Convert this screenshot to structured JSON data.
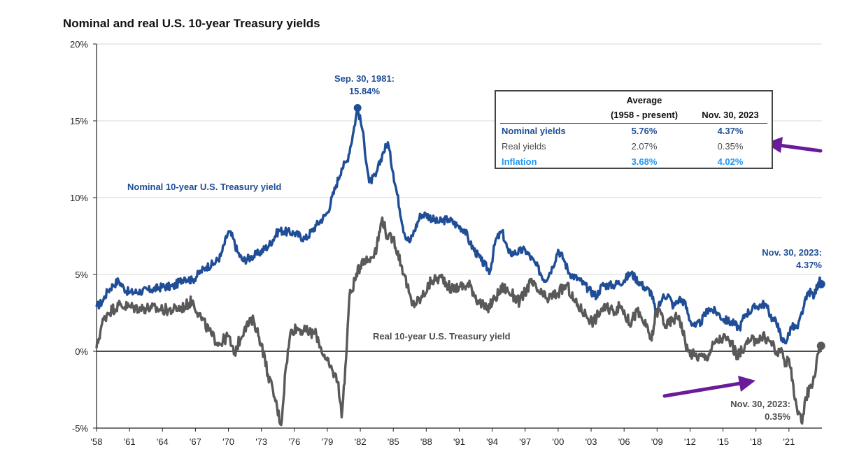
{
  "chart_data": {
    "type": "line",
    "title": "Nominal and real U.S. 10-year Treasury yields",
    "xlabel": "",
    "ylabel": "",
    "x_tick_labels": [
      "'58",
      "'61",
      "'64",
      "'67",
      "'70",
      "'73",
      "'76",
      "'79",
      "'82",
      "'85",
      "'88",
      "'91",
      "'94",
      "'97",
      "'00",
      "'03",
      "'06",
      "'09",
      "'12",
      "'15",
      "'18",
      "'21"
    ],
    "y_tick_labels": [
      "-5%",
      "0%",
      "5%",
      "10%",
      "15%",
      "20%"
    ],
    "xlim": [
      1958,
      2024
    ],
    "ylim": [
      -5,
      20
    ],
    "grid": "horizontal",
    "series": [
      {
        "name": "Nominal 10-year U.S. Treasury yield",
        "color": "#1f4e96",
        "x": [
          1958.0,
          1958.5,
          1959.0,
          1959.5,
          1960.0,
          1960.5,
          1961.0,
          1962.0,
          1963.0,
          1964.0,
          1965.0,
          1966.0,
          1966.7,
          1967.5,
          1968.0,
          1968.7,
          1969.3,
          1970.0,
          1970.4,
          1970.8,
          1971.3,
          1972.0,
          1972.8,
          1973.7,
          1974.6,
          1975.0,
          1976.0,
          1977.0,
          1978.0,
          1979.0,
          1979.8,
          1980.3,
          1980.8,
          1981.3,
          1981.75,
          1982.2,
          1982.8,
          1983.4,
          1984.0,
          1984.5,
          1985.0,
          1986.0,
          1986.5,
          1987.5,
          1988.0,
          1989.0,
          1990.0,
          1990.8,
          1991.5,
          1992.0,
          1993.0,
          1993.8,
          1994.3,
          1994.9,
          1995.5,
          1996.0,
          1997.0,
          1998.0,
          1998.8,
          1999.5,
          2000.0,
          2000.5,
          2001.0,
          2002.0,
          2002.8,
          2003.5,
          2004.0,
          2005.0,
          2006.0,
          2006.6,
          2007.0,
          2007.8,
          2008.5,
          2008.9,
          2009.5,
          2010.0,
          2010.5,
          2011.0,
          2011.5,
          2012.0,
          2012.5,
          2013.0,
          2013.7,
          2014.5,
          2015.0,
          2016.0,
          2016.5,
          2017.0,
          2018.0,
          2018.8,
          2019.5,
          2020.0,
          2020.3,
          2020.8,
          2021.2,
          2021.8,
          2022.3,
          2022.8,
          2023.3,
          2023.8,
          2023.92
        ],
        "values": [
          2.9,
          3.2,
          3.9,
          4.3,
          4.6,
          4.1,
          3.8,
          3.9,
          4.0,
          4.2,
          4.2,
          4.8,
          4.6,
          5.2,
          5.5,
          5.7,
          6.2,
          7.8,
          7.4,
          6.5,
          5.9,
          6.1,
          6.4,
          6.9,
          7.9,
          7.8,
          7.7,
          7.3,
          8.2,
          9.0,
          10.8,
          11.9,
          12.4,
          14.0,
          15.84,
          14.4,
          11.0,
          11.4,
          12.8,
          13.6,
          11.6,
          7.7,
          7.1,
          8.9,
          8.9,
          8.4,
          8.6,
          8.2,
          7.9,
          7.0,
          5.9,
          5.2,
          7.2,
          7.8,
          6.4,
          6.4,
          6.6,
          5.6,
          4.6,
          5.5,
          6.6,
          6.0,
          5.1,
          4.6,
          4.0,
          3.6,
          4.3,
          4.3,
          4.6,
          5.1,
          4.8,
          4.2,
          3.8,
          2.4,
          3.5,
          3.7,
          2.9,
          3.4,
          3.2,
          2.0,
          1.6,
          1.9,
          2.8,
          2.5,
          2.1,
          1.8,
          1.5,
          2.4,
          2.9,
          3.1,
          2.1,
          1.8,
          0.7,
          0.7,
          1.6,
          1.5,
          2.8,
          3.9,
          3.6,
          4.8,
          4.37
        ]
      },
      {
        "name": "Real 10-year U.S. Treasury yield",
        "color": "#595959",
        "x": [
          1958.0,
          1958.5,
          1959.0,
          1960.0,
          1961.0,
          1962.0,
          1963.0,
          1964.0,
          1965.0,
          1966.0,
          1966.7,
          1967.5,
          1968.5,
          1969.2,
          1970.0,
          1970.5,
          1971.5,
          1972.3,
          1973.0,
          1973.6,
          1974.2,
          1974.8,
          1975.2,
          1975.7,
          1976.3,
          1977.0,
          1978.0,
          1978.8,
          1979.5,
          1980.0,
          1980.3,
          1980.7,
          1981.0,
          1981.5,
          1982.2,
          1982.8,
          1983.5,
          1984.0,
          1984.5,
          1985.0,
          1986.0,
          1986.7,
          1987.5,
          1988.5,
          1989.5,
          1990.3,
          1991.0,
          1992.0,
          1992.7,
          1993.5,
          1994.3,
          1995.0,
          1995.8,
          1996.5,
          1997.5,
          1998.3,
          1999.0,
          2000.0,
          2000.8,
          2001.5,
          2002.5,
          2003.2,
          2004.0,
          2005.0,
          2005.8,
          2006.5,
          2007.2,
          2008.0,
          2008.5,
          2008.9,
          2009.3,
          2009.8,
          2010.5,
          2011.0,
          2011.8,
          2012.5,
          2013.5,
          2014.2,
          2015.0,
          2015.8,
          2016.3,
          2017.0,
          2018.0,
          2018.8,
          2019.5,
          2020.0,
          2020.3,
          2020.7,
          2021.0,
          2021.4,
          2021.8,
          2022.2,
          2022.5,
          2022.9,
          2023.3,
          2023.6,
          2023.92
        ],
        "values": [
          0.2,
          1.8,
          2.5,
          3.0,
          2.9,
          2.8,
          2.8,
          2.7,
          2.7,
          2.9,
          3.3,
          2.2,
          1.0,
          0.5,
          1.0,
          -0.2,
          1.6,
          2.0,
          0.5,
          -1.5,
          -3.0,
          -4.8,
          -1.2,
          1.4,
          1.5,
          1.3,
          1.1,
          -0.5,
          -1.3,
          -2.0,
          -4.3,
          -0.5,
          3.5,
          4.6,
          6.0,
          5.9,
          6.8,
          8.7,
          7.3,
          7.4,
          5.0,
          3.0,
          3.4,
          4.6,
          4.8,
          4.0,
          4.2,
          4.3,
          3.3,
          2.7,
          3.5,
          4.2,
          3.7,
          3.2,
          4.5,
          3.8,
          3.4,
          3.8,
          4.3,
          3.2,
          2.4,
          1.9,
          2.8,
          2.7,
          2.9,
          1.8,
          2.6,
          1.6,
          0.7,
          2.6,
          2.6,
          1.6,
          2.1,
          2.3,
          0.0,
          -0.3,
          -0.4,
          0.5,
          0.9,
          0.5,
          -0.4,
          0.4,
          0.8,
          0.9,
          0.5,
          -0.3,
          0.2,
          -0.8,
          -0.5,
          -2.2,
          -4.1,
          -4.7,
          -3.0,
          -2.4,
          -1.7,
          -0.2,
          0.35
        ]
      }
    ],
    "annotations": {
      "peak": {
        "x": 1981.75,
        "y": 15.84,
        "line1": "Sep. 30, 1981:",
        "line2": "15.84%"
      },
      "nominal_end": {
        "x": 2023.92,
        "y": 4.37,
        "line1": "Nov. 30, 2023:",
        "line2": "4.37%"
      },
      "real_end": {
        "x": 2023.92,
        "y": 0.35,
        "line1": "Nov. 30, 2023:",
        "line2": "0.35%"
      },
      "nominal_label": "Nominal 10-year U.S. Treasury yield",
      "real_label": "Real 10-year U.S. Treasury yield"
    }
  },
  "table": {
    "header_average_line1": "Average",
    "header_average_line2": "(1958 - present)",
    "header_latest": "Nov. 30, 2023",
    "rows": [
      {
        "label": "Nominal yields",
        "average": "5.76%",
        "latest": "4.37%",
        "color": "#1f4e96"
      },
      {
        "label": "Real yields",
        "average": "2.07%",
        "latest": "0.35%",
        "color": "#4d4d4d"
      },
      {
        "label": "Inflation",
        "average": "3.68%",
        "latest": "4.02%",
        "color": "#2196f3"
      }
    ]
  },
  "colors": {
    "nominal": "#1f4e96",
    "real": "#595959",
    "arrow": "#6a1b9a",
    "grid": "#d9d9d9",
    "axis": "#222222"
  }
}
